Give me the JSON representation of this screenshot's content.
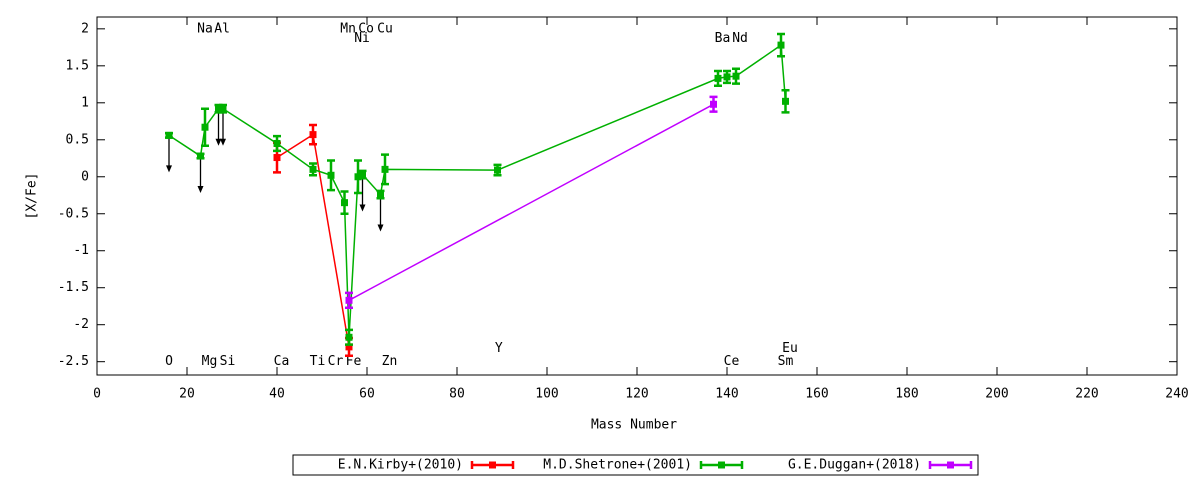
{
  "chart_data": {
    "type": "line",
    "x_label": "Mass Number",
    "y_label": "[X/Fe]",
    "xlim": [
      0,
      240
    ],
    "xticks": [
      0,
      20,
      40,
      60,
      80,
      100,
      120,
      140,
      160,
      180,
      200,
      220,
      240
    ],
    "ylim": [
      -2.68,
      2.16
    ],
    "yticks": [
      2,
      1.5,
      1,
      0.5,
      0,
      -0.5,
      -1,
      -1.5,
      -2,
      -2.5
    ],
    "series": [
      {
        "name": "E.N.Kirby+(2010)",
        "color": "#ff0000",
        "x": [
          40,
          48,
          56
        ],
        "values": [
          0.26,
          0.57,
          -2.3
        ],
        "errors": [
          0.2,
          0.13,
          0.12
        ]
      },
      {
        "name": "M.D.Shetrone+(2001)",
        "color": "#00b000",
        "x": [
          16,
          23,
          24,
          27,
          28,
          40,
          48,
          52,
          55,
          56,
          58,
          59,
          63,
          64,
          89,
          138,
          140,
          142,
          152,
          153
        ],
        "values": [
          0.56,
          0.28,
          0.67,
          0.92,
          0.92,
          0.45,
          0.1,
          0.02,
          -0.35,
          -2.17,
          0.0,
          0.03,
          -0.24,
          0.1,
          0.09,
          1.33,
          1.35,
          1.36,
          1.78,
          1.02
        ],
        "errors": [
          0.03,
          0.03,
          0.25,
          0.05,
          0.05,
          0.1,
          0.08,
          0.2,
          0.15,
          0.1,
          0.22,
          0.05,
          0.05,
          0.2,
          0.07,
          0.1,
          0.08,
          0.1,
          0.15,
          0.15
        ]
      },
      {
        "name": "G.E.Duggan+(2018)",
        "color": "#c000ff",
        "x": [
          56,
          137
        ],
        "values": [
          -1.67,
          0.98
        ],
        "errors": [
          0.1,
          0.1
        ]
      }
    ],
    "upper_limits": {
      "color": "#000000",
      "x": [
        16,
        23,
        27,
        28,
        59,
        63
      ],
      "from": [
        0.56,
        0.28,
        0.92,
        0.92,
        0.03,
        -0.24
      ],
      "to": [
        0.06,
        -0.22,
        0.42,
        0.42,
        -0.47,
        -0.74
      ]
    },
    "element_labels": [
      {
        "text": "Na",
        "x": 24,
        "y": 2
      },
      {
        "text": "Al",
        "x": 27.8,
        "y": 2
      },
      {
        "text": "Mn",
        "x": 55.8,
        "y": 2
      },
      {
        "text": "Co",
        "x": 59.8,
        "y": 2
      },
      {
        "text": "Cu",
        "x": 64,
        "y": 2
      },
      {
        "text": "Ni",
        "x": 58.9,
        "y": 1.87
      },
      {
        "text": "Ba",
        "x": 139,
        "y": 1.87
      },
      {
        "text": "Nd",
        "x": 142.9,
        "y": 1.87
      },
      {
        "text": "O",
        "x": 16,
        "y": -2.5
      },
      {
        "text": "Mg",
        "x": 25,
        "y": -2.5
      },
      {
        "text": "Si",
        "x": 29,
        "y": -2.5
      },
      {
        "text": "Ca",
        "x": 41,
        "y": -2.5
      },
      {
        "text": "Ti",
        "x": 49,
        "y": -2.5
      },
      {
        "text": "Cr",
        "x": 53,
        "y": -2.5
      },
      {
        "text": "Fe",
        "x": 57,
        "y": -2.5
      },
      {
        "text": "Zn",
        "x": 65,
        "y": -2.5
      },
      {
        "text": "Y",
        "x": 89.3,
        "y": -2.32
      },
      {
        "text": "Ce",
        "x": 141,
        "y": -2.5
      },
      {
        "text": "Sm",
        "x": 153,
        "y": -2.5
      },
      {
        "text": "Eu",
        "x": 154,
        "y": -2.32
      }
    ]
  }
}
